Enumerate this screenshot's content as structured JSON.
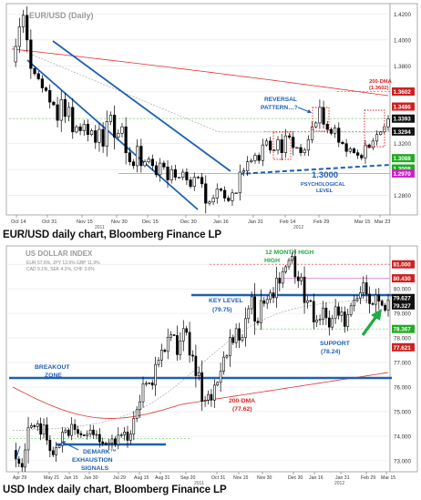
{
  "chart_data": [
    {
      "type": "candlestick",
      "title": "EUR/USD (Daily)",
      "caption": "EUR/USD daily chart, Bloomberg Finance LP",
      "x_ticks": [
        "Oct 14",
        "Oct 31",
        "Nov 15",
        "Nov 30",
        "Dec 15",
        "Dec 30",
        "Jan 16",
        "Jan 31",
        "Feb 14",
        "Feb 29",
        "Mar 15",
        "Mar 23"
      ],
      "year_labels": [
        "2011",
        "2012"
      ],
      "y_ticks": [
        "1.4200",
        "1.4000",
        "1.3800",
        "1.3600",
        "1.3400",
        "1.3200",
        "1.3000",
        "1.2800"
      ],
      "ylim": [
        1.265,
        1.428
      ],
      "price_tags": [
        {
          "text": "1.3602",
          "value": 1.3602,
          "color": "#cc2222"
        },
        {
          "text": "1.3486",
          "value": 1.3486,
          "color": "#cc2222"
        },
        {
          "text": "1.3393",
          "value": 1.3393,
          "color": "#111111"
        },
        {
          "text": "1.3294",
          "value": 1.3294,
          "color": "#111111"
        },
        {
          "text": "1.3088",
          "value": 1.3088,
          "color": "#22aa22"
        },
        {
          "text": "1.3008",
          "value": 1.3008,
          "color": "#22aa22"
        },
        {
          "text": "1.2970",
          "value": 1.297,
          "color": "#cc22cc"
        }
      ],
      "closes": [
        1.383,
        1.395,
        1.41,
        1.419,
        1.4,
        1.378,
        1.374,
        1.37,
        1.363,
        1.361,
        1.352,
        1.35,
        1.338,
        1.354,
        1.341,
        1.348,
        1.329,
        1.333,
        1.33,
        1.335,
        1.327,
        1.33,
        1.321,
        1.331,
        1.318,
        1.337,
        1.342,
        1.325,
        1.328,
        1.333,
        1.313,
        1.306,
        1.303,
        1.318,
        1.303,
        1.306,
        1.308,
        1.303,
        1.296,
        1.305,
        1.302,
        1.292,
        1.3,
        1.294,
        1.294,
        1.298,
        1.292,
        1.287,
        1.294,
        1.294,
        1.289,
        1.274,
        1.275,
        1.278,
        1.285,
        1.284,
        1.278,
        1.276,
        1.282,
        1.282,
        1.298,
        1.299,
        1.306,
        1.307,
        1.311,
        1.307,
        1.319,
        1.322,
        1.315,
        1.315,
        1.323,
        1.313,
        1.326,
        1.325,
        1.317,
        1.317,
        1.313,
        1.315,
        1.323,
        1.333,
        1.336,
        1.348,
        1.335,
        1.331,
        1.328,
        1.332,
        1.321,
        1.32,
        1.314,
        1.316,
        1.313,
        1.311,
        1.309,
        1.319,
        1.317,
        1.322,
        1.327,
        1.329,
        1.333,
        1.339
      ],
      "annotations": [
        "REVERSAL PATTERN…?",
        "1.3000",
        "PSYCHOLOGICAL LEVEL",
        "200-DMA",
        "(1.3602)"
      ]
    },
    {
      "type": "candlestick",
      "title": "US DOLLAR INDEX",
      "caption": "USD Index daily chart, Bloomberg Finance LP",
      "weights": [
        "EUR 57.6%, JPY 13.6% GBP 11.9%",
        "CAD 9.1%, SEK 4.2%, CHF 3.6%"
      ],
      "x_ticks": [
        "Apr 29",
        "May 21",
        "Jun 15",
        "Jun 30",
        "Jul 29",
        "Aug 15",
        "Aug 31",
        "Sep 20",
        "Oct 31",
        "Nov 15",
        "Nov 30",
        "Dec 30",
        "Jan 16",
        "Jan 31",
        "Feb 29",
        "Mar 15"
      ],
      "year_labels": [
        "2011",
        "2012"
      ],
      "y_ticks": [
        "81.000",
        "80.000",
        "79.000",
        "78.000",
        "77.000",
        "76.000",
        "75.000",
        "74.000",
        "73.000"
      ],
      "ylim": [
        72.55,
        81.75
      ],
      "price_tags": [
        {
          "text": "81.000",
          "value": 81.0,
          "color": "#cc2222"
        },
        {
          "text": "80.430",
          "value": 80.43,
          "color": "#cc2222"
        },
        {
          "text": "79.627",
          "value": 79.627,
          "color": "#111111"
        },
        {
          "text": "79.327",
          "value": 79.327,
          "color": "#111111"
        },
        {
          "text": "78.367",
          "value": 78.367,
          "color": "#22aa22"
        },
        {
          "text": "77.621",
          "value": 77.621,
          "color": "#cc2222"
        }
      ],
      "closes": [
        73.42,
        73.07,
        72.89,
        72.74,
        73.44,
        74.36,
        74.43,
        74.39,
        74.51,
        74.08,
        74.46,
        73.84,
        73.41,
        73.24,
        73.54,
        73.62,
        74.16,
        74.25,
        74.03,
        74.48,
        74.27,
        74.11,
        74.05,
        74.02,
        74.08,
        74.25,
        74.06,
        74.07,
        73.77,
        73.71,
        73.67,
        73.72,
        73.89,
        73.66,
        74.04,
        74.06,
        74.17,
        73.83,
        74.08,
        74.72,
        75.08,
        75.4,
        76.13,
        76.15,
        76.17,
        76.08,
        76.92,
        77.1,
        77.51,
        77.45,
        78.03,
        78.13,
        78.1,
        77.32,
        77.88,
        78.38,
        78.23,
        77.3,
        77.26,
        76.46,
        76.59,
        75.42,
        75.47,
        75.7,
        75.47,
        76.08,
        76.19,
        76.65,
        77.22,
        77.28,
        78.02,
        77.81,
        78.38,
        77.91,
        78.02,
        78.79,
        79.19,
        79.68,
        78.68,
        78.62,
        79.52,
        79.41,
        79.57,
        79.84,
        79.64,
        80.44,
        80.23,
        80.7,
        80.9,
        81.16,
        81.32,
        80.49,
        80.33,
        80.48,
        79.44,
        79.52,
        79.49,
        78.65,
        78.73,
        78.76,
        79.22,
        78.82,
        78.44,
        78.79,
        79.27,
        78.92,
        79.06,
        78.47,
        78.95,
        79.31,
        79.54,
        79.62,
        79.84,
        80.25,
        79.79,
        79.4,
        79.37,
        79.75,
        79.5,
        79.33,
        79.13,
        79.53
      ],
      "annotations": [
        "12 MONTH HIGH",
        "KEY LEVEL",
        "(79.75)",
        "BREAKOUT ZONE",
        "SUPPORT",
        "(78.24)",
        "200-DMA",
        "(77.62)",
        "DEMARK™",
        "EXHAUSTION",
        "SIGNALS"
      ]
    }
  ]
}
